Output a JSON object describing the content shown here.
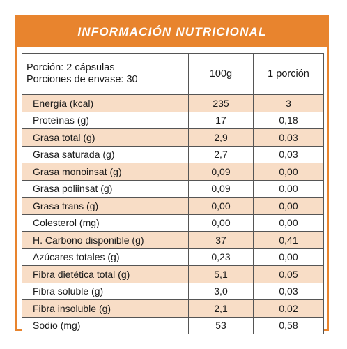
{
  "title": "INFORMACIÓN NUTRICIONAL",
  "header": {
    "serving_line1": "Porción: 2 cápsulas",
    "serving_line2": "Porciones de envase: 30",
    "col_100g": "100g",
    "col_portion": "1 porción"
  },
  "rows": [
    {
      "name": "Energía (kcal)",
      "per100g": "235",
      "perPortion": "3"
    },
    {
      "name": "Proteínas (g)",
      "per100g": "17",
      "perPortion": "0,18"
    },
    {
      "name": "Grasa total (g)",
      "per100g": "2,9",
      "perPortion": "0,03"
    },
    {
      "name": "Grasa saturada (g)",
      "per100g": "2,7",
      "perPortion": "0,03"
    },
    {
      "name": "Grasa monoinsat (g)",
      "per100g": "0,09",
      "perPortion": "0,00"
    },
    {
      "name": "Grasa poliinsat (g)",
      "per100g": "0,09",
      "perPortion": "0,00"
    },
    {
      "name": "Grasa trans (g)",
      "per100g": "0,00",
      "perPortion": "0,00"
    },
    {
      "name": "Colesterol (mg)",
      "per100g": "0,00",
      "perPortion": "0,00"
    },
    {
      "name": "H. Carbono disponible (g)",
      "per100g": "37",
      "perPortion": "0,41"
    },
    {
      "name": "Azúcares totales (g)",
      "per100g": "0,23",
      "perPortion": "0,00"
    },
    {
      "name": "Fibra dietética total (g)",
      "per100g": "5,1",
      "perPortion": "0,05"
    },
    {
      "name": "Fibra soluble (g)",
      "per100g": "3,0",
      "perPortion": "0,03"
    },
    {
      "name": "Fibra insoluble (g)",
      "per100g": "2,1",
      "perPortion": "0,02"
    },
    {
      "name": "Sodio (mg)",
      "per100g": "53",
      "perPortion": "0,58"
    }
  ],
  "colors": {
    "accent": "#e8842e",
    "row_shade": "#f8ddc6",
    "border": "#555555"
  }
}
